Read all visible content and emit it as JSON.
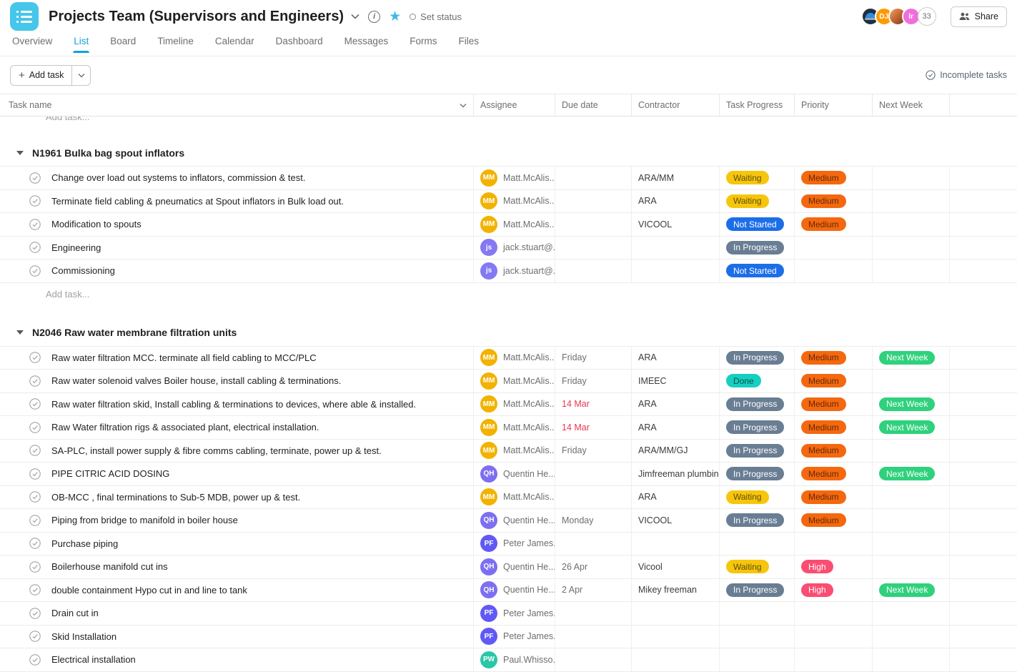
{
  "header": {
    "title": "Projects Team (Supervisors and Engineers)",
    "set_status": "Set status",
    "share": "Share",
    "member_count": "33",
    "avatar_dj": "DJ",
    "avatar_lr": "lr",
    "brand_color": "#45c6ea"
  },
  "tabs": {
    "items": [
      {
        "label": "Overview"
      },
      {
        "label": "List"
      },
      {
        "label": "Board"
      },
      {
        "label": "Timeline"
      },
      {
        "label": "Calendar"
      },
      {
        "label": "Dashboard"
      },
      {
        "label": "Messages"
      },
      {
        "label": "Forms"
      },
      {
        "label": "Files"
      }
    ],
    "active": "List",
    "active_color": "#14a0d8"
  },
  "toolbar": {
    "add_task": "Add task",
    "incomplete": "Incomplete tasks"
  },
  "table": {
    "columns": [
      "Task name",
      "Assignee",
      "Due date",
      "Contractor",
      "Task Progress",
      "Priority",
      "Next Week"
    ]
  },
  "clipped_add_task": "Add task...",
  "pill_colors": {
    "Waiting": {
      "bg": "#f6c60d",
      "fg": "rgba(0,0,0,0.62)"
    },
    "Not Started": {
      "bg": "#1c6ee8",
      "fg": "#ffffff"
    },
    "In Progress": {
      "bg": "#697d93",
      "fg": "#ffffff"
    },
    "Done": {
      "bg": "#16cfc0",
      "fg": "rgba(0,0,0,0.62)"
    },
    "Medium": {
      "bg": "#f4680f",
      "fg": "rgba(0,0,0,0.6)"
    },
    "High": {
      "bg": "#fa4d72",
      "fg": "#ffffff"
    },
    "Next Week": {
      "bg": "#2fd17c",
      "fg": "#ffffff"
    }
  },
  "sections": [
    {
      "name": "N1961 Bulka bag spout inflators",
      "add_task": "Add task...",
      "tasks": [
        {
          "name": "Change over load out systems to inflators, commission & test.",
          "assignee": {
            "initials": "MM",
            "display": "Matt.McAlis...",
            "color": "#f2b200"
          },
          "due": {
            "text": "",
            "overdue": false
          },
          "contractor": "ARA/MM",
          "progress": "Waiting",
          "priority": "Medium",
          "next_week": ""
        },
        {
          "name": "Terminate field cabling & pneumatics at Spout inflators in Bulk load out.",
          "assignee": {
            "initials": "MM",
            "display": "Matt.McAlis...",
            "color": "#f2b200"
          },
          "due": {
            "text": "",
            "overdue": false
          },
          "contractor": "ARA",
          "progress": "Waiting",
          "priority": "Medium",
          "next_week": ""
        },
        {
          "name": "Modification to spouts",
          "assignee": {
            "initials": "MM",
            "display": "Matt.McAlis...",
            "color": "#f2b200"
          },
          "due": {
            "text": "",
            "overdue": false
          },
          "contractor": "VICOOL",
          "progress": "Not Started",
          "priority": "Medium",
          "next_week": ""
        },
        {
          "name": "Engineering",
          "assignee": {
            "initials": "js",
            "display": "jack.stuart@...",
            "color": "#8379f3"
          },
          "due": {
            "text": "",
            "overdue": false
          },
          "contractor": "",
          "progress": "In Progress",
          "priority": "",
          "next_week": ""
        },
        {
          "name": "Commissioning",
          "assignee": {
            "initials": "js",
            "display": "jack.stuart@...",
            "color": "#8379f3"
          },
          "due": {
            "text": "",
            "overdue": false
          },
          "contractor": "",
          "progress": "Not Started",
          "priority": "",
          "next_week": ""
        }
      ]
    },
    {
      "name": "N2046 Raw water membrane filtration units",
      "add_task": "",
      "tasks": [
        {
          "name": "Raw water filtration MCC. terminate all field cabling to MCC/PLC",
          "assignee": {
            "initials": "MM",
            "display": "Matt.McAlis...",
            "color": "#f2b200"
          },
          "due": {
            "text": "Friday",
            "overdue": false
          },
          "contractor": "ARA",
          "progress": "In Progress",
          "priority": "Medium",
          "next_week": "Next Week"
        },
        {
          "name": "Raw water solenoid valves Boiler house, install cabling & terminations.",
          "assignee": {
            "initials": "MM",
            "display": "Matt.McAlis...",
            "color": "#f2b200"
          },
          "due": {
            "text": "Friday",
            "overdue": false
          },
          "contractor": "IMEEC",
          "progress": "Done",
          "priority": "Medium",
          "next_week": ""
        },
        {
          "name": "Raw water filtration skid, Install cabling & terminations to devices, where able & installed.",
          "assignee": {
            "initials": "MM",
            "display": "Matt.McAlis...",
            "color": "#f2b200"
          },
          "due": {
            "text": "14 Mar",
            "overdue": true
          },
          "contractor": "ARA",
          "progress": "In Progress",
          "priority": "Medium",
          "next_week": "Next Week"
        },
        {
          "name": "Raw Water filtration rigs & associated plant, electrical installation.",
          "assignee": {
            "initials": "MM",
            "display": "Matt.McAlis...",
            "color": "#f2b200"
          },
          "due": {
            "text": "14 Mar",
            "overdue": true
          },
          "contractor": "ARA",
          "progress": "In Progress",
          "priority": "Medium",
          "next_week": "Next Week"
        },
        {
          "name": "SA-PLC, install power supply & fibre comms cabling, terminate, power up & test.",
          "assignee": {
            "initials": "MM",
            "display": "Matt.McAlis...",
            "color": "#f2b200"
          },
          "due": {
            "text": "Friday",
            "overdue": false
          },
          "contractor": "ARA/MM/GJ",
          "progress": "In Progress",
          "priority": "Medium",
          "next_week": ""
        },
        {
          "name": "PIPE CITRIC ACID DOSING",
          "assignee": {
            "initials": "QH",
            "display": "Quentin He...",
            "color": "#7d6ef2"
          },
          "due": {
            "text": "",
            "overdue": false
          },
          "contractor": "Jimfreeman plumbing",
          "progress": "In Progress",
          "priority": "Medium",
          "next_week": "Next Week"
        },
        {
          "name": "OB-MCC , final terminations to Sub-5 MDB, power up & test.",
          "assignee": {
            "initials": "MM",
            "display": "Matt.McAlis...",
            "color": "#f2b200"
          },
          "due": {
            "text": "",
            "overdue": false
          },
          "contractor": "ARA",
          "progress": "Waiting",
          "priority": "Medium",
          "next_week": ""
        },
        {
          "name": "Piping from bridge to manifold in boiler house",
          "assignee": {
            "initials": "QH",
            "display": "Quentin He...",
            "color": "#7d6ef2"
          },
          "due": {
            "text": "Monday",
            "overdue": false
          },
          "contractor": "VICOOL",
          "progress": "In Progress",
          "priority": "Medium",
          "next_week": ""
        },
        {
          "name": "Purchase piping",
          "assignee": {
            "initials": "PF",
            "display": "Peter James...",
            "color": "#6159f5"
          },
          "due": {
            "text": "",
            "overdue": false
          },
          "contractor": "",
          "progress": "",
          "priority": "",
          "next_week": ""
        },
        {
          "name": "Boilerhouse manifold cut ins",
          "assignee": {
            "initials": "QH",
            "display": "Quentin He...",
            "color": "#7d6ef2"
          },
          "due": {
            "text": "26 Apr",
            "overdue": false
          },
          "contractor": "Vicool",
          "progress": "Waiting",
          "priority": "High",
          "next_week": ""
        },
        {
          "name": "double containment Hypo cut in and line to tank",
          "assignee": {
            "initials": "QH",
            "display": "Quentin He...",
            "color": "#7d6ef2"
          },
          "due": {
            "text": "2 Apr",
            "overdue": false
          },
          "contractor": "Mikey freeman",
          "progress": "In Progress",
          "priority": "High",
          "next_week": "Next Week"
        },
        {
          "name": "Drain cut in",
          "assignee": {
            "initials": "PF",
            "display": "Peter James...",
            "color": "#6159f5"
          },
          "due": {
            "text": "",
            "overdue": false
          },
          "contractor": "",
          "progress": "",
          "priority": "",
          "next_week": ""
        },
        {
          "name": "Skid Installation",
          "assignee": {
            "initials": "PF",
            "display": "Peter James...",
            "color": "#6159f5"
          },
          "due": {
            "text": "",
            "overdue": false
          },
          "contractor": "",
          "progress": "",
          "priority": "",
          "next_week": ""
        },
        {
          "name": "Electrical installation",
          "assignee": {
            "initials": "PW",
            "display": "Paul.Whisso...",
            "color": "#29c6a7"
          },
          "due": {
            "text": "",
            "overdue": false
          },
          "contractor": "",
          "progress": "",
          "priority": "",
          "next_week": ""
        }
      ]
    }
  ]
}
